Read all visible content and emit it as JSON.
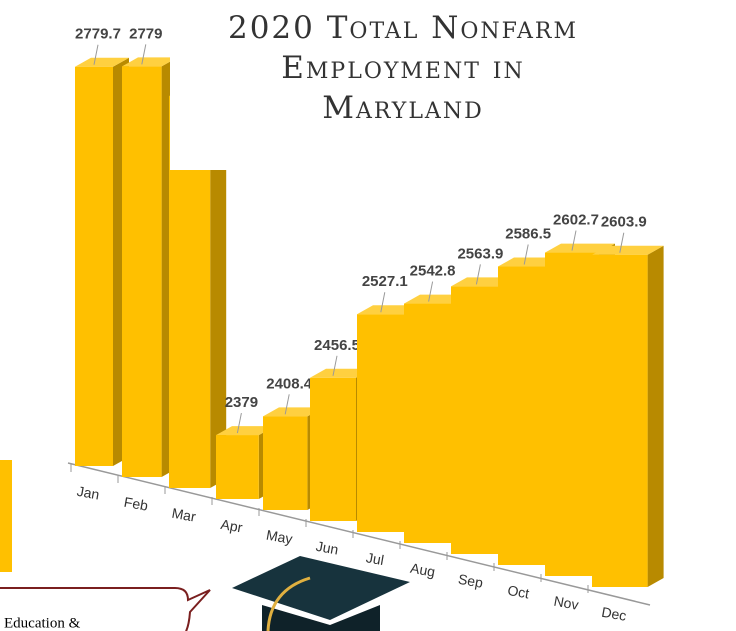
{
  "chart_data": {
    "type": "bar3d",
    "title": "2020 Total Nonfarm Employment in Maryland",
    "categories": [
      "Jan",
      "Feb",
      "Mar",
      "Apr",
      "May",
      "Jun",
      "Jul",
      "Aug",
      "Sep",
      "Oct",
      "Nov",
      "Dec"
    ],
    "values": [
      2779.7,
      2779,
      2745,
      2379,
      2408.4,
      2456.5,
      2527.1,
      2542.8,
      2563.9,
      2586.5,
      2602.7,
      2603.9
    ],
    "color": "#ffc000"
  },
  "callout": {
    "text": "Education &"
  }
}
